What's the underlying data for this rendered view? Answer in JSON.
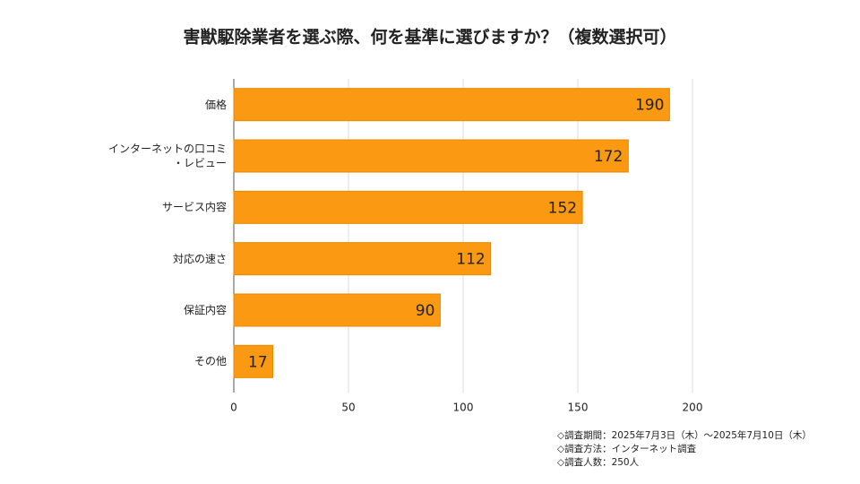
{
  "chart_data": {
    "type": "barh",
    "title": "害獣駆除業者を選ぶ際、何を基準に選びますか？（複数選択可）",
    "categories": [
      "価格",
      "インターネットの口コミ\n・レビュー",
      "サービス内容",
      "対応の速さ",
      "保証内容",
      "その他"
    ],
    "values": [
      190,
      172,
      152,
      112,
      90,
      17
    ],
    "color": "#fb9a12",
    "xlim": [
      0,
      200
    ],
    "xticks": [
      0,
      50,
      100,
      150,
      200
    ],
    "grid": true,
    "annotations": [
      "◇調査期間：2025年7月3日（木）～2025年7月10日（木）",
      "◇調査方法：インターネット調査",
      "◇調査人数：250人"
    ]
  }
}
